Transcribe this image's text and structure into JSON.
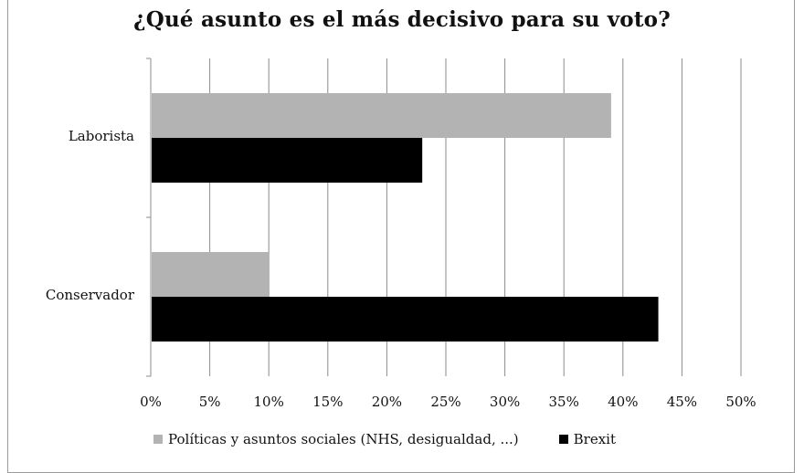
{
  "chart_data": {
    "type": "bar",
    "orientation": "horizontal",
    "title": "¿Qué asunto es el más decisivo para su voto?",
    "categories": [
      "Laborista",
      "Conservador"
    ],
    "series": [
      {
        "name": "Políticas y asuntos sociales (NHS, desigualdad, ...)",
        "values": [
          39,
          10
        ],
        "color": "#b3b3b3"
      },
      {
        "name": "Brexit",
        "values": [
          23,
          43
        ],
        "color": "#000000"
      }
    ],
    "x_ticks": [
      "0%",
      "5%",
      "10%",
      "15%",
      "20%",
      "25%",
      "30%",
      "35%",
      "40%",
      "45%",
      "50%"
    ],
    "xlim": [
      0,
      50
    ],
    "unit": "%",
    "grid": true,
    "legend_position": "bottom"
  }
}
